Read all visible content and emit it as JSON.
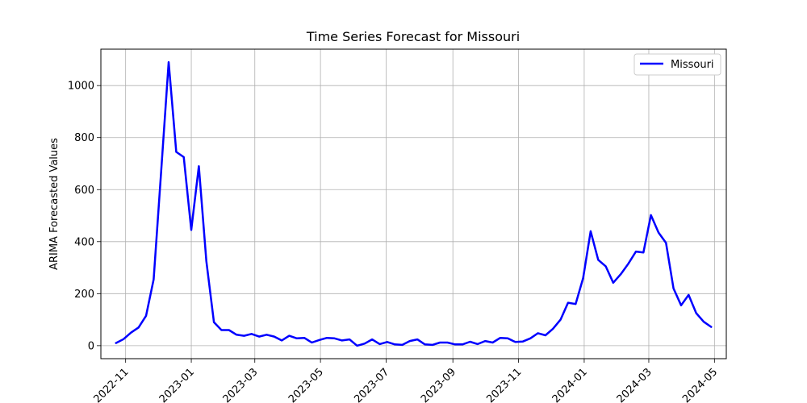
{
  "chart_data": {
    "type": "line",
    "title": "Time Series Forecast for Missouri",
    "xlabel": "",
    "ylabel": "ARIMA Forecasted Values",
    "x_start": "2022-10-23",
    "x_step_days": 7,
    "xlim": [
      "2022-10-09",
      "2024-05-12"
    ],
    "ylim": [
      -50,
      1140
    ],
    "x_ticks": [
      "2022-11",
      "2023-01",
      "2023-03",
      "2023-05",
      "2023-07",
      "2023-09",
      "2023-11",
      "2024-01",
      "2024-03",
      "2024-05"
    ],
    "y_ticks": [
      0,
      200,
      400,
      600,
      800,
      1000
    ],
    "grid": true,
    "legend": {
      "position": "top-right",
      "entries": [
        "Missouri"
      ]
    },
    "series": [
      {
        "name": "Missouri",
        "color": "#0000ff",
        "values": [
          10,
          25,
          50,
          70,
          115,
          255,
          670,
          1090,
          745,
          725,
          445,
          690,
          325,
          90,
          60,
          60,
          42,
          38,
          45,
          35,
          42,
          35,
          20,
          38,
          28,
          30,
          12,
          22,
          30,
          28,
          20,
          24,
          0,
          8,
          24,
          6,
          14,
          5,
          3,
          18,
          24,
          5,
          3,
          12,
          12,
          5,
          5,
          15,
          6,
          18,
          12,
          30,
          28,
          14,
          16,
          28,
          48,
          40,
          65,
          100,
          165,
          160,
          260,
          440,
          330,
          305,
          242,
          275,
          315,
          362,
          358,
          502,
          435,
          395,
          220,
          155,
          195,
          125,
          92,
          72
        ]
      }
    ]
  }
}
